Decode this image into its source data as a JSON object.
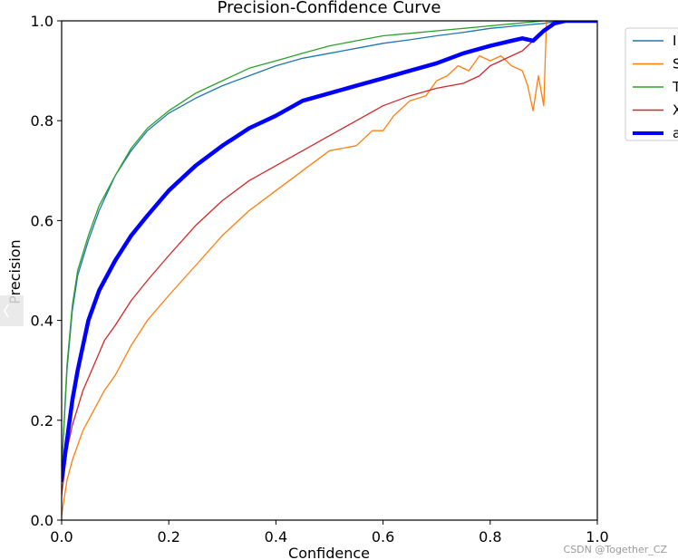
{
  "chart_data": {
    "type": "line",
    "title": "Precision-Confidence Curve",
    "xlabel": "Confidence",
    "ylabel": "Precision",
    "xlim": [
      0.0,
      1.0
    ],
    "ylim": [
      0.0,
      1.0
    ],
    "xticks": [
      0.0,
      0.2,
      0.4,
      0.6,
      0.8,
      1.0
    ],
    "yticks": [
      0.0,
      0.2,
      0.4,
      0.6,
      0.8,
      1.0
    ],
    "xtick_labels": [
      "0.0",
      "0.2",
      "0.4",
      "0.6",
      "0.8",
      "1.0"
    ],
    "ytick_labels": [
      "0.0",
      "0.2",
      "0.4",
      "0.6",
      "0.8",
      "1.0"
    ],
    "grid": false,
    "legend_position": "outside-top-right",
    "series": [
      {
        "name": "I",
        "color": "#1f77b4",
        "width": 1.3,
        "x": [
          0.0,
          0.01,
          0.02,
          0.03,
          0.05,
          0.07,
          0.1,
          0.13,
          0.16,
          0.2,
          0.25,
          0.3,
          0.35,
          0.4,
          0.45,
          0.5,
          0.55,
          0.6,
          0.65,
          0.7,
          0.75,
          0.8,
          0.85,
          0.9,
          0.93,
          0.95,
          1.0
        ],
        "y": [
          0.1,
          0.3,
          0.42,
          0.49,
          0.56,
          0.62,
          0.69,
          0.74,
          0.78,
          0.815,
          0.845,
          0.87,
          0.89,
          0.91,
          0.925,
          0.935,
          0.945,
          0.955,
          0.962,
          0.97,
          0.977,
          0.985,
          0.99,
          0.995,
          1.0,
          1.0,
          1.0
        ]
      },
      {
        "name": "S",
        "color": "#ff7f0e",
        "width": 1.3,
        "x": [
          0.0,
          0.01,
          0.02,
          0.04,
          0.06,
          0.08,
          0.1,
          0.13,
          0.16,
          0.2,
          0.25,
          0.3,
          0.35,
          0.4,
          0.45,
          0.5,
          0.55,
          0.58,
          0.6,
          0.62,
          0.65,
          0.68,
          0.7,
          0.72,
          0.74,
          0.76,
          0.78,
          0.8,
          0.82,
          0.84,
          0.86,
          0.87,
          0.88,
          0.89,
          0.9,
          0.905,
          0.91,
          1.0
        ],
        "y": [
          0.01,
          0.08,
          0.12,
          0.18,
          0.22,
          0.26,
          0.29,
          0.35,
          0.4,
          0.45,
          0.51,
          0.57,
          0.62,
          0.66,
          0.7,
          0.74,
          0.75,
          0.78,
          0.78,
          0.81,
          0.84,
          0.85,
          0.88,
          0.89,
          0.91,
          0.9,
          0.93,
          0.92,
          0.93,
          0.91,
          0.9,
          0.87,
          0.82,
          0.89,
          0.83,
          1.0,
          1.0,
          1.0
        ]
      },
      {
        "name": "T",
        "color": "#2ca02c",
        "width": 1.3,
        "x": [
          0.0,
          0.01,
          0.02,
          0.03,
          0.05,
          0.07,
          0.1,
          0.13,
          0.16,
          0.2,
          0.25,
          0.3,
          0.35,
          0.4,
          0.45,
          0.5,
          0.55,
          0.6,
          0.65,
          0.7,
          0.75,
          0.8,
          0.85,
          0.9,
          0.93,
          1.0
        ],
        "y": [
          0.1,
          0.31,
          0.43,
          0.5,
          0.57,
          0.63,
          0.69,
          0.745,
          0.785,
          0.82,
          0.855,
          0.88,
          0.905,
          0.92,
          0.935,
          0.95,
          0.96,
          0.97,
          0.975,
          0.98,
          0.985,
          0.99,
          0.995,
          1.0,
          1.0,
          1.0
        ]
      },
      {
        "name": "X",
        "color": "#d62728",
        "width": 1.3,
        "x": [
          0.0,
          0.01,
          0.02,
          0.04,
          0.06,
          0.08,
          0.1,
          0.13,
          0.16,
          0.2,
          0.25,
          0.3,
          0.35,
          0.4,
          0.45,
          0.5,
          0.55,
          0.6,
          0.65,
          0.7,
          0.75,
          0.78,
          0.8,
          0.82,
          0.84,
          0.86,
          0.88,
          0.9,
          0.92,
          1.0
        ],
        "y": [
          0.05,
          0.14,
          0.19,
          0.26,
          0.31,
          0.36,
          0.39,
          0.44,
          0.48,
          0.53,
          0.59,
          0.64,
          0.68,
          0.71,
          0.74,
          0.77,
          0.8,
          0.83,
          0.85,
          0.865,
          0.875,
          0.89,
          0.91,
          0.92,
          0.93,
          0.94,
          0.96,
          0.98,
          1.0,
          1.0
        ]
      },
      {
        "name": "a",
        "color": "#0000ff",
        "width": 4.5,
        "x": [
          0.0,
          0.01,
          0.02,
          0.03,
          0.05,
          0.07,
          0.1,
          0.13,
          0.16,
          0.2,
          0.25,
          0.3,
          0.35,
          0.4,
          0.45,
          0.5,
          0.55,
          0.6,
          0.65,
          0.7,
          0.75,
          0.8,
          0.82,
          0.84,
          0.86,
          0.88,
          0.9,
          0.92,
          0.94,
          1.0
        ],
        "y": [
          0.08,
          0.16,
          0.24,
          0.3,
          0.4,
          0.46,
          0.52,
          0.57,
          0.61,
          0.66,
          0.71,
          0.75,
          0.785,
          0.81,
          0.84,
          0.855,
          0.87,
          0.885,
          0.9,
          0.915,
          0.935,
          0.95,
          0.955,
          0.96,
          0.965,
          0.96,
          0.98,
          0.995,
          1.0,
          1.0
        ]
      }
    ]
  },
  "watermark": "CSDN @Together_CZ"
}
